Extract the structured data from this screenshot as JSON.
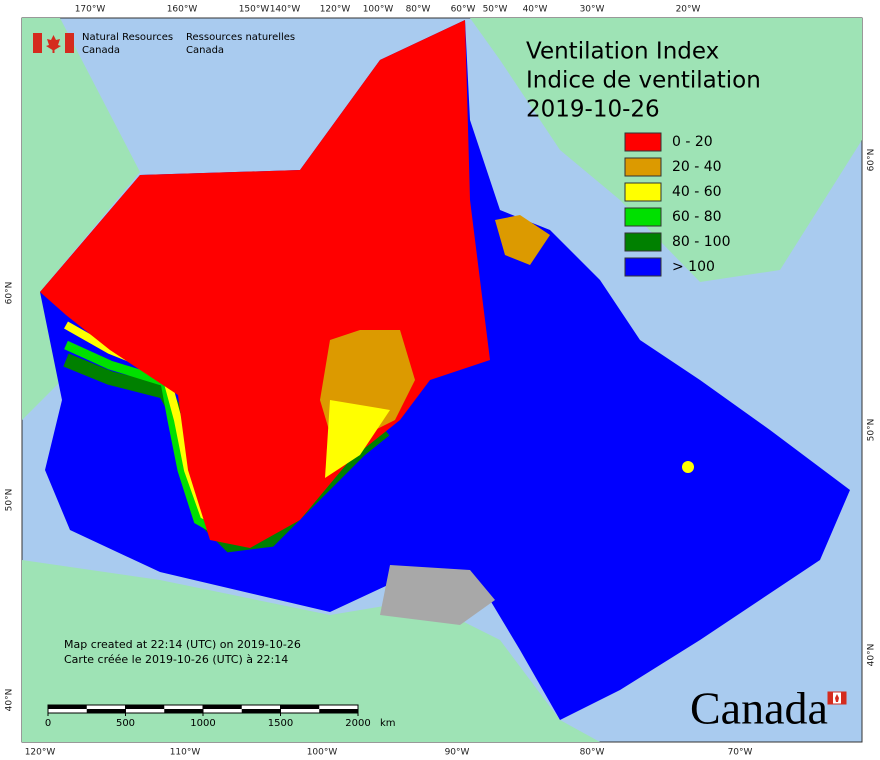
{
  "header": {
    "org_en": [
      "Natural Resources",
      "Canada"
    ],
    "org_fr": [
      "Ressources naturelles",
      "Canada"
    ]
  },
  "title": [
    "Ventilation Index",
    "Indice de ventilation",
    "2019-10-26"
  ],
  "legend": [
    {
      "label": "0 - 20",
      "color": "#ff0000"
    },
    {
      "label": "20 - 40",
      "color": "#dc9a00"
    },
    {
      "label": "40 - 60",
      "color": "#ffff00"
    },
    {
      "label": "60 - 80",
      "color": "#00e000"
    },
    {
      "label": "80 - 100",
      "color": "#008000"
    },
    {
      "label": "> 100",
      "color": "#0000ff"
    }
  ],
  "graticule": {
    "top": [
      "170°W",
      "160°W",
      "150°W",
      "140°W",
      "120°W",
      "100°W",
      "80°W",
      "60°W",
      "50°W",
      "40°W",
      "30°W",
      "20°W"
    ],
    "bottom": [
      "120°W",
      "110°W",
      "100°W",
      "90°W",
      "80°W",
      "70°W"
    ],
    "left": [
      "60°N",
      "50°N",
      "40°N"
    ],
    "right": [
      "60°N",
      "50°N",
      "40°N"
    ]
  },
  "notes": [
    "Map created at 22:14 (UTC) on 2019-10-26",
    "Carte créée le 2019-10-26 (UTC) à 22:14"
  ],
  "scale_bar": {
    "ticks": [
      0,
      500,
      1000,
      1500,
      2000
    ],
    "unit": "km"
  },
  "wordmark": "Canada"
}
